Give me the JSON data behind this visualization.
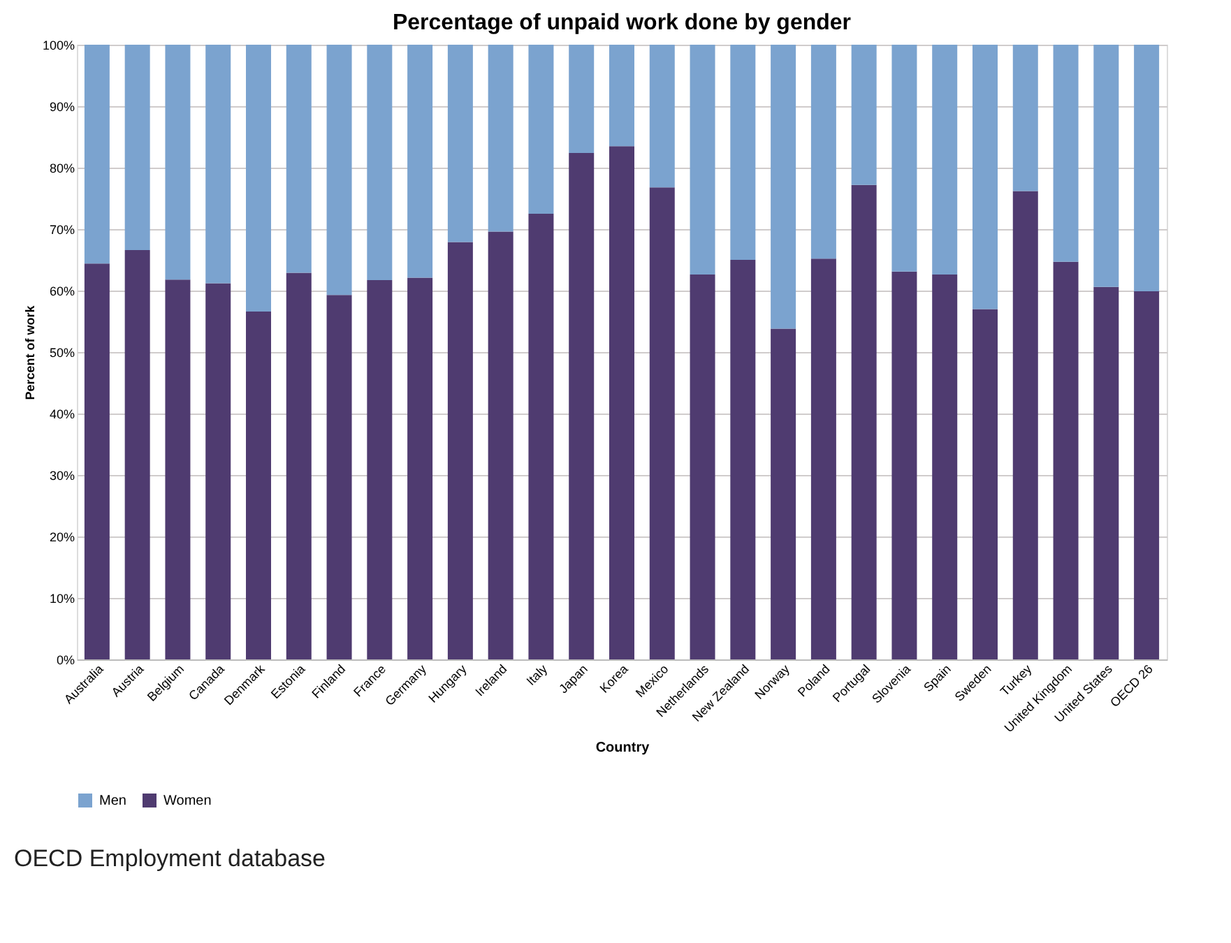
{
  "chart_data": {
    "type": "bar",
    "title": "Percentage of unpaid work done by gender",
    "xlabel": "Country",
    "ylabel": "Percent of work",
    "categories": [
      "Australia",
      "Austria",
      "Belgium",
      "Canada",
      "Denmark",
      "Estonia",
      "Finland",
      "France",
      "Germany",
      "Hungary",
      "Ireland",
      "Italy",
      "Japan",
      "Korea",
      "Mexico",
      "Netherlands",
      "New Zealand",
      "Norway",
      "Poland",
      "Portugal",
      "Slovenia",
      "Spain",
      "Sweden",
      "Turkey",
      "United Kingdom",
      "United States",
      "OECD 26"
    ],
    "stacked": true,
    "series": [
      {
        "name": "Women",
        "color": "#4f3b70",
        "values": [
          64.4,
          66.6,
          61.8,
          61.2,
          56.6,
          62.9,
          59.3,
          61.7,
          62.1,
          67.9,
          69.6,
          72.5,
          82.4,
          83.5,
          76.8,
          62.6,
          65.0,
          53.8,
          65.2,
          77.2,
          63.1,
          62.6,
          57.0,
          76.2,
          64.7,
          60.6,
          59.9
        ]
      },
      {
        "name": "Men",
        "color": "#7ba3cf",
        "values": [
          35.6,
          33.4,
          38.2,
          38.8,
          43.4,
          37.1,
          40.7,
          38.3,
          37.9,
          32.1,
          30.4,
          27.5,
          17.6,
          16.5,
          23.2,
          37.4,
          35.0,
          46.2,
          34.8,
          22.8,
          36.9,
          37.4,
          43.0,
          23.8,
          35.3,
          39.4,
          40.1
        ]
      }
    ],
    "ylim": [
      0,
      100
    ],
    "yticks": [
      {
        "value": 0,
        "label": "0%"
      },
      {
        "value": 10,
        "label": "10%"
      },
      {
        "value": 20,
        "label": "20%"
      },
      {
        "value": 30,
        "label": "30%"
      },
      {
        "value": 40,
        "label": "40%"
      },
      {
        "value": 50,
        "label": "50%"
      },
      {
        "value": 60,
        "label": "60%"
      },
      {
        "value": 70,
        "label": "70%"
      },
      {
        "value": 80,
        "label": "80%"
      },
      {
        "value": 90,
        "label": "90%"
      },
      {
        "value": 100,
        "label": "100%"
      }
    ],
    "grid": "y",
    "legend": "bottom left",
    "annotations": [
      "OECD Employment database"
    ]
  }
}
